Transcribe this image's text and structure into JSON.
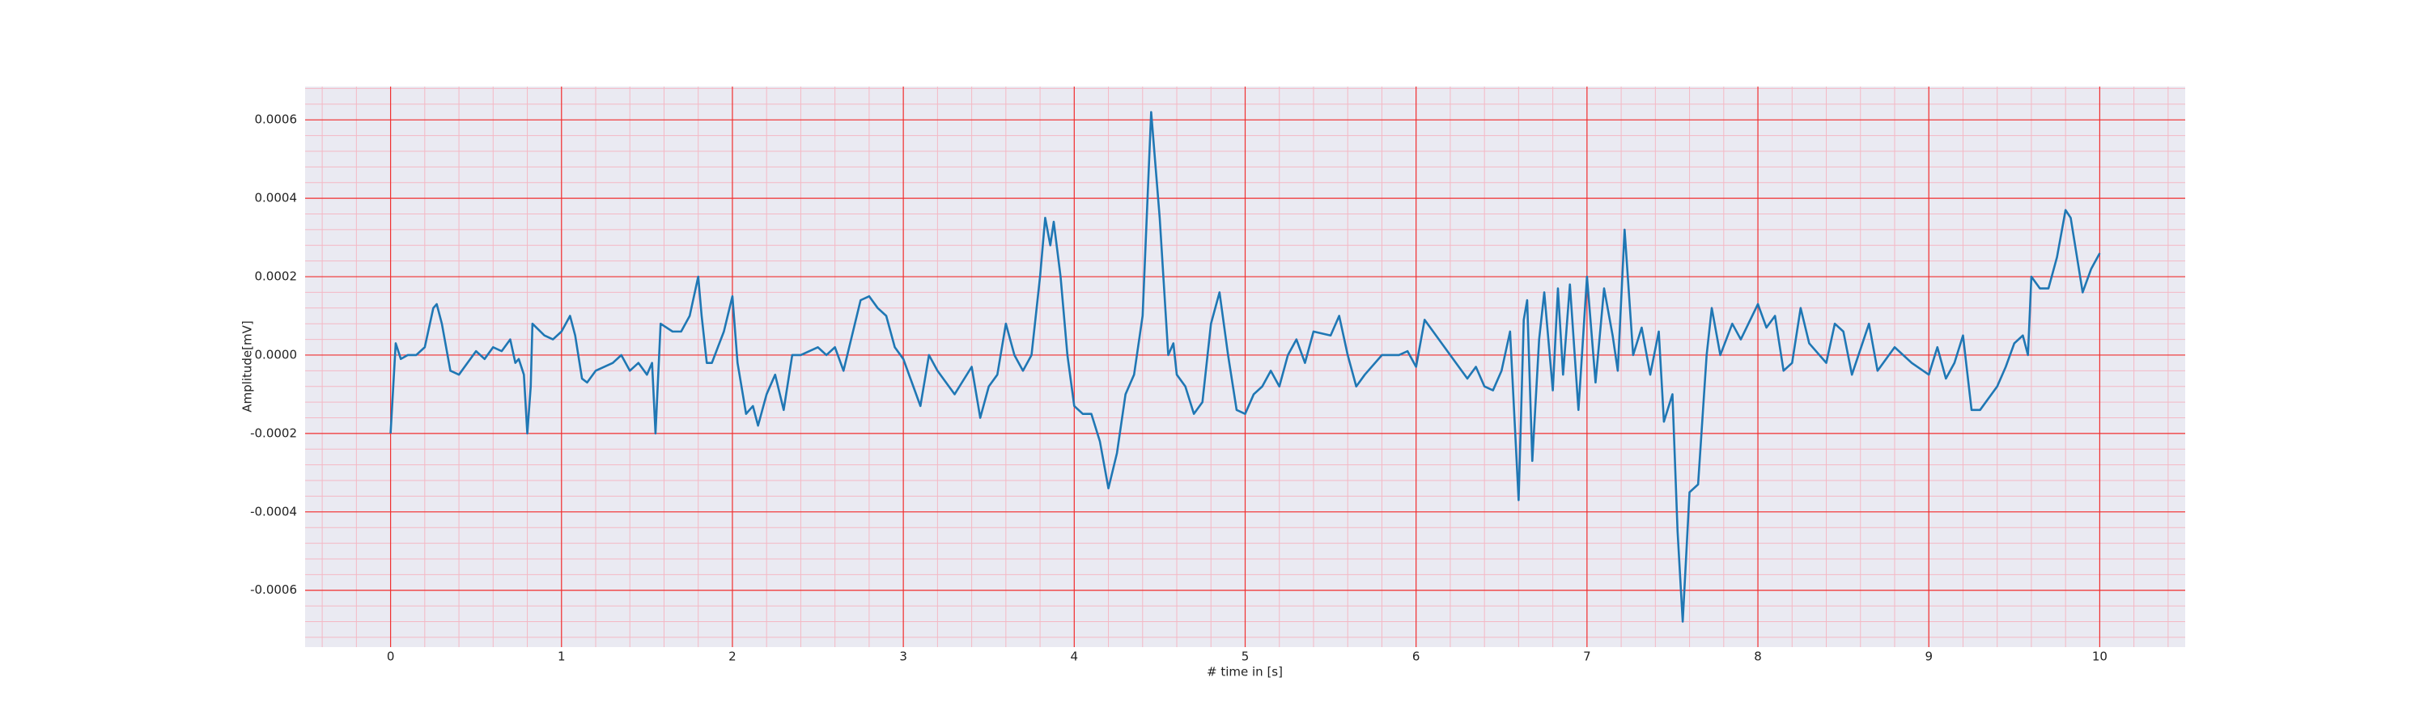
{
  "chart_data": {
    "type": "line",
    "xlabel": "# time in [s]",
    "ylabel": "Amplitude[mV]",
    "xlim": [
      -0.5,
      10.5
    ],
    "ylim": [
      -0.000745,
      0.000685
    ],
    "xticks": [
      0,
      1,
      2,
      3,
      4,
      5,
      6,
      7,
      8,
      9,
      10
    ],
    "yticks": [
      -0.0006,
      -0.0004,
      -0.0002,
      {
        "value": 0,
        "label": "0.0000"
      },
      0.0002,
      0.0004,
      0.0006
    ],
    "grid": true,
    "minor_grid": true,
    "series": [
      {
        "color": "#1f77b4",
        "x": [
          0,
          0.03,
          0.06,
          0.1,
          0.15,
          0.2,
          0.25,
          0.27,
          0.3,
          0.35,
          0.4,
          0.45,
          0.5,
          0.55,
          0.6,
          0.65,
          0.7,
          0.73,
          0.75,
          0.78,
          0.8,
          0.82,
          0.83,
          0.9,
          0.95,
          1.0,
          1.05,
          1.08,
          1.12,
          1.15,
          1.2,
          1.3,
          1.35,
          1.4,
          1.45,
          1.5,
          1.53,
          1.55,
          1.58,
          1.65,
          1.7,
          1.75,
          1.8,
          1.82,
          1.85,
          1.88,
          1.95,
          2.0,
          2.03,
          2.08,
          2.12,
          2.15,
          2.2,
          2.25,
          2.3,
          2.35,
          2.4,
          2.5,
          2.55,
          2.6,
          2.65,
          2.7,
          2.75,
          2.8,
          2.85,
          2.9,
          2.95,
          3.0,
          3.05,
          3.1,
          3.15,
          3.2,
          3.3,
          3.4,
          3.45,
          3.5,
          3.55,
          3.6,
          3.65,
          3.7,
          3.75,
          3.8,
          3.83,
          3.86,
          3.88,
          3.92,
          3.96,
          4.0,
          4.05,
          4.1,
          4.15,
          4.2,
          4.25,
          4.3,
          4.35,
          4.4,
          4.45,
          4.5,
          4.55,
          4.58,
          4.6,
          4.65,
          4.7,
          4.75,
          4.8,
          4.85,
          4.9,
          4.95,
          5.0,
          5.05,
          5.1,
          5.15,
          5.2,
          5.25,
          5.3,
          5.35,
          5.4,
          5.5,
          5.55,
          5.6,
          5.65,
          5.7,
          5.8,
          5.9,
          5.95,
          6.0,
          6.05,
          6.1,
          6.2,
          6.3,
          6.35,
          6.4,
          6.45,
          6.5,
          6.55,
          6.6,
          6.63,
          6.65,
          6.68,
          6.72,
          6.75,
          6.8,
          6.83,
          6.86,
          6.9,
          6.95,
          7.0,
          7.05,
          7.1,
          7.15,
          7.18,
          7.22,
          7.27,
          7.32,
          7.37,
          7.42,
          7.45,
          7.5,
          7.53,
          7.56,
          7.6,
          7.65,
          7.7,
          7.73,
          7.78,
          7.85,
          7.9,
          8.0,
          8.05,
          8.1,
          8.15,
          8.2,
          8.25,
          8.3,
          8.4,
          8.45,
          8.5,
          8.55,
          8.65,
          8.7,
          8.8,
          8.9,
          9.0,
          9.05,
          9.1,
          9.15,
          9.2,
          9.25,
          9.3,
          9.35,
          9.4,
          9.45,
          9.5,
          9.55,
          9.58,
          9.6,
          9.65,
          9.7,
          9.75,
          9.8,
          9.83,
          9.9,
          9.95,
          10.0
        ],
        "values": [
          -0.0002,
          3e-05,
          -1e-05,
          0.0,
          0.0,
          2e-05,
          0.00012,
          0.00013,
          8e-05,
          -4e-05,
          -5e-05,
          -2e-05,
          1e-05,
          -1e-05,
          2e-05,
          1e-05,
          4e-05,
          -2e-05,
          -1e-05,
          -5e-05,
          -0.0002,
          -8e-05,
          8e-05,
          5e-05,
          4e-05,
          6e-05,
          0.0001,
          5e-05,
          -6e-05,
          -7e-05,
          -4e-05,
          -2e-05,
          0.0,
          -4e-05,
          -2e-05,
          -5e-05,
          -2e-05,
          -0.0002,
          8e-05,
          6e-05,
          6e-05,
          0.0001,
          0.0002,
          0.0001,
          -2e-05,
          -2e-05,
          6e-05,
          0.00015,
          -2e-05,
          -0.00015,
          -0.00013,
          -0.00018,
          -0.0001,
          -5e-05,
          -0.00014,
          0.0,
          0.0,
          2e-05,
          0.0,
          2e-05,
          -4e-05,
          5e-05,
          0.00014,
          0.00015,
          0.00012,
          0.0001,
          2e-05,
          -1e-05,
          -7e-05,
          -0.00013,
          0.0,
          -4e-05,
          -0.0001,
          -3e-05,
          -0.00016,
          -8e-05,
          -5e-05,
          8e-05,
          0.0,
          -4e-05,
          0.0,
          0.0002,
          0.00035,
          0.00028,
          0.00034,
          0.0002,
          0.0,
          -0.00013,
          -0.00015,
          -0.00015,
          -0.00022,
          -0.00034,
          -0.00025,
          -0.0001,
          -5e-05,
          0.0001,
          0.00062,
          0.00035,
          0.0,
          3e-05,
          -5e-05,
          -8e-05,
          -0.00015,
          -0.00012,
          8e-05,
          0.00016,
          0.0,
          -0.00014,
          -0.00015,
          -0.0001,
          -8e-05,
          -4e-05,
          -8e-05,
          0.0,
          4e-05,
          -2e-05,
          6e-05,
          5e-05,
          0.0001,
          0.0,
          -8e-05,
          -5e-05,
          0.0,
          0.0,
          1e-05,
          -3e-05,
          9e-05,
          6e-05,
          0.0,
          -6e-05,
          -3e-05,
          -8e-05,
          -9e-05,
          -4e-05,
          6e-05,
          -0.00037,
          9e-05,
          0.00014,
          -0.00027,
          4e-05,
          0.00016,
          -9e-05,
          0.00017,
          -5e-05,
          0.00018,
          -0.00014,
          0.0002,
          -7e-05,
          0.00017,
          5e-05,
          -4e-05,
          0.00032,
          0.0,
          7e-05,
          -5e-05,
          6e-05,
          -0.00017,
          -0.0001,
          -0.00045,
          -0.00068,
          -0.00035,
          -0.00033,
          0.0,
          0.00012,
          0.0,
          8e-05,
          4e-05,
          0.00013,
          7e-05,
          0.0001,
          -4e-05,
          -2e-05,
          0.00012,
          3e-05,
          -2e-05,
          8e-05,
          6e-05,
          -5e-05,
          8e-05,
          -4e-05,
          2e-05,
          -2e-05,
          -5e-05,
          2e-05,
          -6e-05,
          -2e-05,
          5e-05,
          -0.00014,
          -0.00014,
          -0.00011,
          -8e-05,
          -3e-05,
          3e-05,
          5e-05,
          0.0,
          0.0002,
          0.00017,
          0.00017,
          0.00025,
          0.00037,
          0.00035,
          0.00016,
          0.00022,
          0.00026
        ]
      }
    ]
  }
}
